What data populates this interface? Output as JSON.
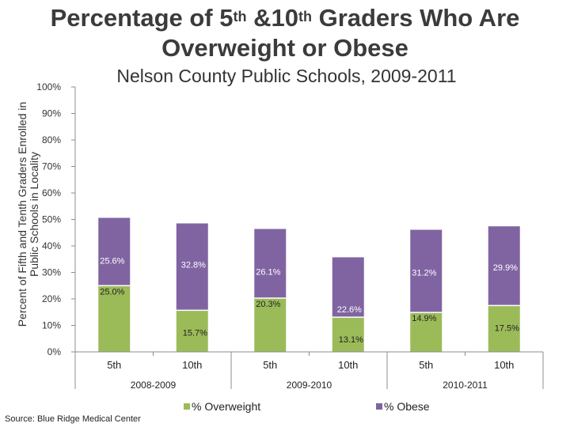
{
  "title_parts": [
    "Percentage of 5",
    "th",
    " &10",
    "th",
    " Graders Who Are Overweight or Obese"
  ],
  "source": "Source: Blue Ridge Medical Center",
  "chart_data": {
    "type": "bar",
    "stacked": true,
    "title": "Nelson County Public Schools, 2009-2011",
    "ylabel": "Percent of Fifth and Tenth Graders Enrolled in Public Schools in Locality",
    "ylim": [
      0,
      100
    ],
    "yticks": [
      "0%",
      "10%",
      "20%",
      "30%",
      "40%",
      "50%",
      "60%",
      "70%",
      "80%",
      "90%",
      "100%"
    ],
    "categories": [
      "5th",
      "10th",
      "5th",
      "10th",
      "5th",
      "10th"
    ],
    "groups": [
      "2008-2009",
      "2009-2010",
      "2010-2011"
    ],
    "series": [
      {
        "name": "% Overweight",
        "color": "#9bbb59",
        "values": [
          25.0,
          15.7,
          20.3,
          13.1,
          14.9,
          17.5
        ],
        "labels": [
          "25.0%",
          "15.7%",
          "20.3%",
          "13.1%",
          "14.9%",
          "17.5%"
        ]
      },
      {
        "name": "% Obese",
        "color": "#8064a2",
        "values": [
          25.6,
          32.8,
          26.1,
          22.6,
          31.2,
          29.9
        ],
        "labels": [
          "25.6%",
          "32.8%",
          "26.1%",
          "22.6%",
          "31.2%",
          "29.9%"
        ]
      }
    ],
    "legend": "bottom"
  }
}
